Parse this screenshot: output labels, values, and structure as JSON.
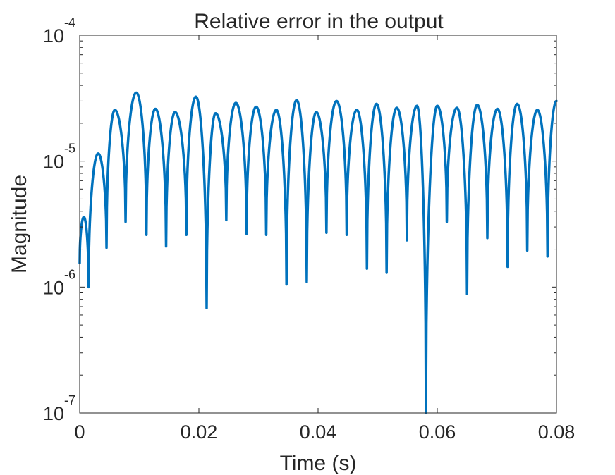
{
  "chart_data": {
    "type": "line",
    "title": "Relative error in the output",
    "xlabel": "Time (s)",
    "ylabel": "Magnitude",
    "xlim": [
      0,
      0.08
    ],
    "ylim": [
      1e-07,
      0.0001
    ],
    "yscale": "log",
    "grid": false,
    "line_color": "#0072BD",
    "x_ticks": [
      {
        "value": 0,
        "label": "0"
      },
      {
        "value": 0.02,
        "label": "0.02"
      },
      {
        "value": 0.04,
        "label": "0.04"
      },
      {
        "value": 0.06,
        "label": "0.06"
      },
      {
        "value": 0.08,
        "label": "0.08"
      }
    ],
    "y_ticks": [
      {
        "value": 0.0001,
        "base": "10",
        "exp": "-4"
      },
      {
        "value": 1e-05,
        "base": "10",
        "exp": "-5"
      },
      {
        "value": 1e-06,
        "base": "10",
        "exp": "-6"
      },
      {
        "value": 1e-07,
        "base": "10",
        "exp": "-7"
      }
    ],
    "series": [
      {
        "peaks": [
          [
            0.0007,
            3.6e-06
          ],
          [
            0.0031,
            1.15e-05
          ],
          [
            0.0059,
            2.55e-05
          ],
          [
            0.0095,
            3.5e-05
          ],
          [
            0.0127,
            2.6e-05
          ],
          [
            0.016,
            2.45e-05
          ],
          [
            0.0195,
            3.25e-05
          ],
          [
            0.0228,
            2.4e-05
          ],
          [
            0.0262,
            2.9e-05
          ],
          [
            0.0296,
            2.7e-05
          ],
          [
            0.033,
            2.55e-05
          ],
          [
            0.0364,
            3.05e-05
          ],
          [
            0.0397,
            2.45e-05
          ],
          [
            0.0431,
            3e-05
          ],
          [
            0.0465,
            2.55e-05
          ],
          [
            0.0498,
            2.85e-05
          ],
          [
            0.0532,
            2.65e-05
          ],
          [
            0.0566,
            2.75e-05
          ],
          [
            0.06,
            2.75e-05
          ],
          [
            0.0633,
            2.65e-05
          ],
          [
            0.0667,
            2.8e-05
          ],
          [
            0.0701,
            2.6e-05
          ],
          [
            0.0734,
            2.85e-05
          ],
          [
            0.0768,
            2.55e-05
          ],
          [
            0.08,
            3e-05
          ]
        ],
        "troughs": [
          [
            0.0,
            1.55e-06
          ],
          [
            0.0015,
            1e-06
          ],
          [
            0.0045,
            2.05e-06
          ],
          [
            0.0077,
            3.3e-06
          ],
          [
            0.0112,
            2.6e-06
          ],
          [
            0.0145,
            2.1e-06
          ],
          [
            0.0179,
            2.6e-06
          ],
          [
            0.0213,
            6.8e-07
          ],
          [
            0.0246,
            3.4e-06
          ],
          [
            0.028,
            2.65e-06
          ],
          [
            0.0313,
            2.6e-06
          ],
          [
            0.0347,
            1.05e-06
          ],
          [
            0.0381,
            1.1e-06
          ],
          [
            0.0414,
            2.7e-06
          ],
          [
            0.0448,
            2.6e-06
          ],
          [
            0.0482,
            1.4e-06
          ],
          [
            0.0515,
            1.3e-06
          ],
          [
            0.0549,
            2.35e-06
          ],
          [
            0.0581,
            1e-07
          ],
          [
            0.0616,
            3.3e-06
          ],
          [
            0.065,
            8.8e-07
          ],
          [
            0.0684,
            2.45e-06
          ],
          [
            0.0718,
            1.45e-06
          ],
          [
            0.0751,
            1.95e-06
          ],
          [
            0.0785,
            1.75e-06
          ]
        ]
      }
    ]
  }
}
